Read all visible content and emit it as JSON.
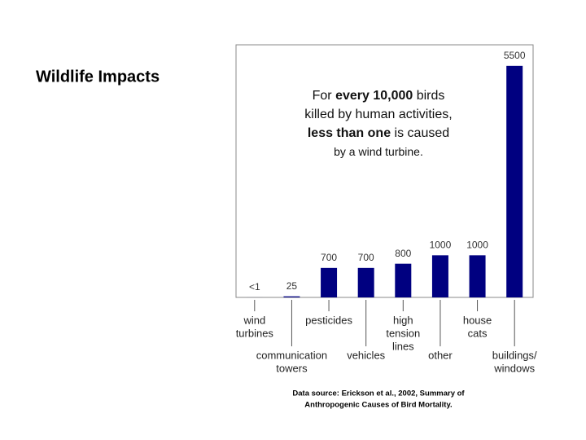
{
  "title": "Wildlife Impacts",
  "chart_data": {
    "type": "bar",
    "annotation": [
      [
        "For ",
        "every 10,000",
        " birds"
      ],
      [
        "killed by human activities,"
      ],
      [
        "less than one",
        " is caused"
      ],
      [
        "by a wind turbine."
      ]
    ],
    "categories": [
      [
        "wind",
        "turbines"
      ],
      [
        "communication",
        "towers"
      ],
      [
        "pesticides"
      ],
      [
        "vehicles"
      ],
      [
        "high",
        "tension",
        "lines"
      ],
      [
        "other"
      ],
      [
        "house",
        "cats"
      ],
      [
        "buildings/",
        "windows"
      ]
    ],
    "values": [
      0.5,
      25,
      700,
      700,
      800,
      1000,
      1000,
      5500
    ],
    "value_labels": [
      "<1",
      "25",
      "700",
      "700",
      "800",
      "1000",
      "1000",
      "5500"
    ],
    "color": "#000080",
    "ylim": [
      0,
      6000
    ],
    "source": [
      "Data source: Erickson et al., 2002, Summary of",
      "Anthropogenic Causes of Bird Mortality."
    ]
  }
}
